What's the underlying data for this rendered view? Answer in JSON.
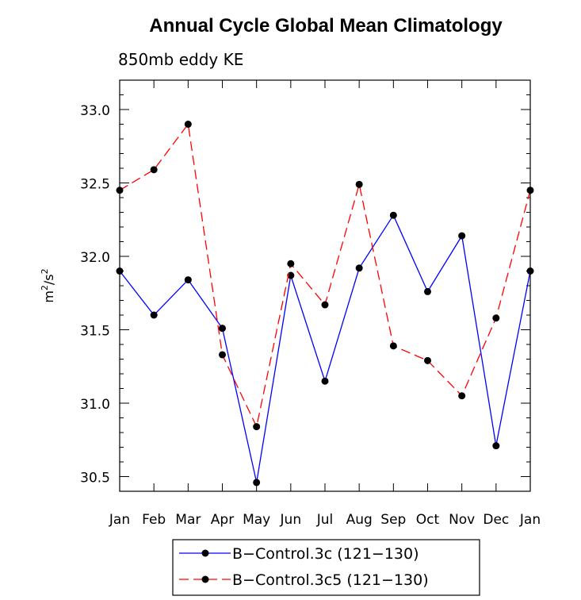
{
  "chart_data": {
    "type": "line",
    "title": "Annual Cycle Global Mean Climatology",
    "subtitle": "850mb eddy KE",
    "ylabel_base": "m",
    "ylabel_exp1": "2",
    "ylabel_mid": "/s",
    "ylabel_exp2": "2",
    "xlabel": "",
    "categories": [
      "Jan",
      "Feb",
      "Mar",
      "Apr",
      "May",
      "Jun",
      "Jul",
      "Aug",
      "Sep",
      "Oct",
      "Nov",
      "Dec",
      "Jan"
    ],
    "ylim": [
      30.4,
      33.2
    ],
    "yticks": [
      30.5,
      31.0,
      31.5,
      32.0,
      32.5,
      33.0
    ],
    "ytick_labels": [
      "30.5",
      "31.0",
      "31.5",
      "32.0",
      "32.5",
      "33.0"
    ],
    "series": [
      {
        "name": "B−Control.3c (121−130)",
        "color": "#0000ff",
        "dash": "solid",
        "values": [
          31.9,
          31.6,
          31.84,
          31.51,
          30.46,
          31.87,
          31.15,
          31.92,
          32.28,
          31.76,
          32.14,
          30.71,
          31.9
        ]
      },
      {
        "name": "B−Control.3c5 (121−130)",
        "color": "#ff0000",
        "dash": "dashed",
        "values": [
          32.45,
          32.59,
          32.9,
          31.33,
          30.84,
          31.95,
          31.67,
          32.49,
          31.39,
          31.29,
          31.05,
          31.58,
          32.45
        ]
      }
    ],
    "legend_position": "bottom"
  }
}
